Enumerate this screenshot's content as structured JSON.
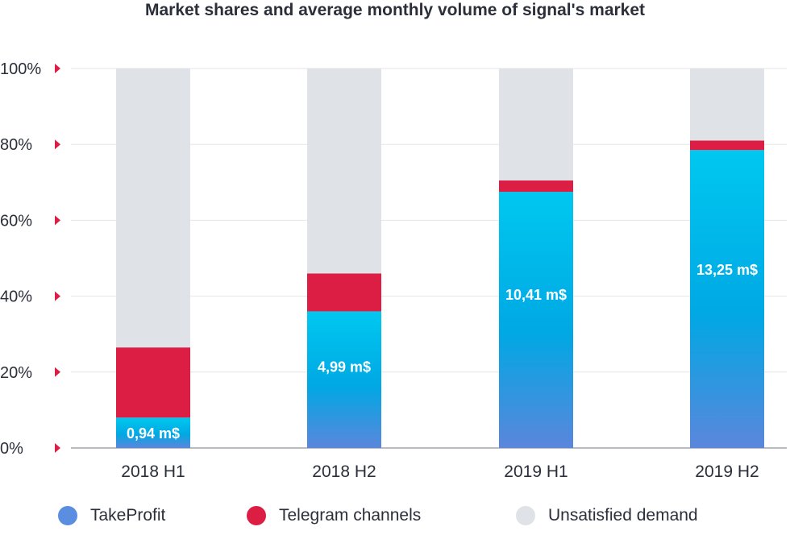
{
  "title": "Market shares and average monthly volume of signal's market",
  "chart_data": {
    "type": "bar",
    "stacked": true,
    "categories": [
      "2018 H1",
      "2018 H2",
      "2019 H1",
      "2019 H2"
    ],
    "ylim": [
      0,
      100
    ],
    "yticks": [
      "0%",
      "20%",
      "40%",
      "60%",
      "80%",
      "100%"
    ],
    "grid": true,
    "legend_position": "bottom",
    "series": [
      {
        "name": "TakeProfit",
        "values": [
          8,
          36,
          67.5,
          78.5
        ],
        "color": "#5b8ee0"
      },
      {
        "name": "Telegram channels",
        "values": [
          18.5,
          10,
          3,
          2.5
        ],
        "color": "#dc1e44"
      },
      {
        "name": "Unsatisfied demand",
        "values": [
          73.5,
          54,
          29.5,
          19
        ],
        "color": "#dfe2e7"
      }
    ],
    "data_labels": [
      "0,94 m$",
      "4,99 m$",
      "10,41 m$",
      "13,25 m$"
    ]
  },
  "colors": {
    "accent": "#dc1e44",
    "takeprofit_top": "#00c8f0",
    "takeprofit_mid": "#00a8e4",
    "takeprofit_bottom": "#5b86dc",
    "grid": "#e4e6ea",
    "axis": "#b9bcc2",
    "text": "#2b2f3a"
  }
}
